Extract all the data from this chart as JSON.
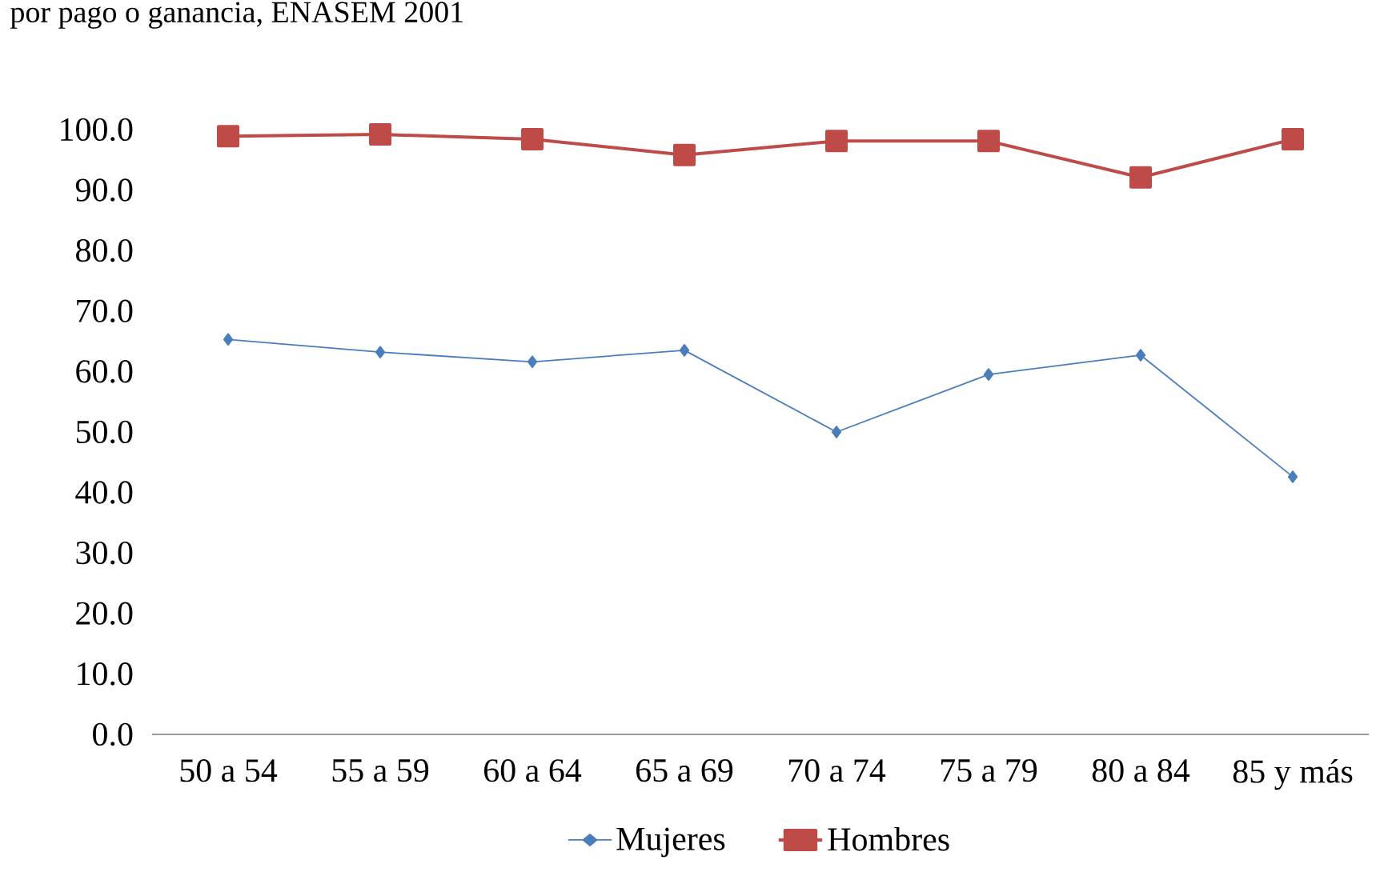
{
  "chart_data": {
    "type": "line",
    "title": "por pago o ganancia, ENASEM 2001",
    "categories": [
      "50 a 54",
      "55 a 59",
      "60 a 64",
      "65 a 69",
      "70 a 74",
      "75 a 79",
      "80 a 84",
      "85 y más"
    ],
    "series": [
      {
        "name": "Mujeres",
        "color": "#4a7ebb",
        "marker": "diamond",
        "values": [
          65.3,
          63.2,
          61.6,
          63.5,
          50.0,
          59.5,
          62.7,
          42.6
        ]
      },
      {
        "name": "Hombres",
        "color": "#be4b48",
        "marker": "square",
        "values": [
          98.9,
          99.2,
          98.4,
          95.8,
          98.1,
          98.1,
          92.1,
          98.4
        ]
      }
    ],
    "ylim": [
      0,
      100
    ],
    "yticks": [
      {
        "value": 0,
        "label": "0.0"
      },
      {
        "value": 10,
        "label": "10.0"
      },
      {
        "value": 20,
        "label": "20.0"
      },
      {
        "value": 30,
        "label": "30.0"
      },
      {
        "value": 40,
        "label": "40.0"
      },
      {
        "value": 50,
        "label": "50.0"
      },
      {
        "value": 60,
        "label": "60.0"
      },
      {
        "value": 70,
        "label": "70.0"
      },
      {
        "value": 80,
        "label": "80.0"
      },
      {
        "value": 90,
        "label": "90.0"
      },
      {
        "value": 100,
        "label": "100.0"
      }
    ],
    "grid": false,
    "legend": "bottom",
    "line_style": "solid"
  }
}
